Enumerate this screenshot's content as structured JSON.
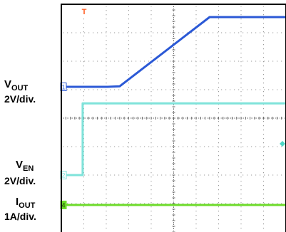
{
  "chart_data": {
    "type": "line",
    "title": "",
    "xlabel": "",
    "ylabel": "",
    "x_unit": "div",
    "y_unit": "div",
    "xlim": [
      0,
      10
    ],
    "ylim": [
      -4,
      4
    ],
    "grid": true,
    "trigger_marker": "T",
    "trigger_level_marker": "diamond",
    "trigger_level_y": -0.9,
    "series": [
      {
        "label_main": "V",
        "label_sub": "OUT",
        "scale": "2V/div.",
        "marker": "1",
        "color": "#2b59d6",
        "x": [
          0,
          2.05,
          2.6,
          6.6,
          9.99
        ],
        "y": [
          1.1,
          1.1,
          1.12,
          3.55,
          3.55
        ]
      },
      {
        "label_main": "V",
        "label_sub": "EN",
        "scale": "2V/div.",
        "marker": "2",
        "color": "#7fe3da",
        "x": [
          0,
          0.95,
          0.95,
          9.99
        ],
        "y": [
          -2.0,
          -2.0,
          0.52,
          0.52
        ]
      },
      {
        "label_main": "I",
        "label_sub": "OUT",
        "scale": "1A/div.",
        "marker": "4",
        "color": "#6ddb2a",
        "x": [
          0,
          9.99
        ],
        "y": [
          -3.05,
          -3.05
        ]
      }
    ]
  }
}
